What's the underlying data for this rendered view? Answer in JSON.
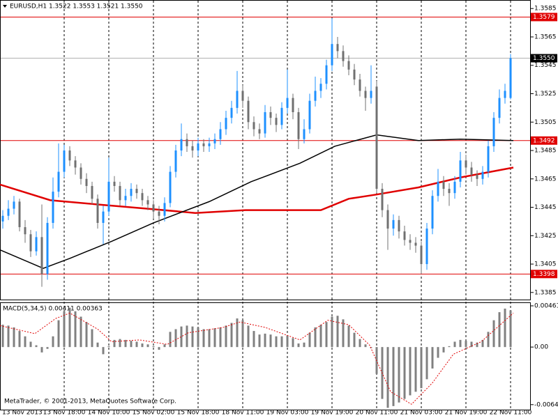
{
  "chart_data": [
    {
      "type": "candlestick",
      "title": "EURUSD,H1  1.3522 1.3553 1.3521 1.3550",
      "footer": "MetaTrader, © 2001-2013, MetaQuotes Software Corp.",
      "up_color": "#1e90ff",
      "down_color": "#707070",
      "xlim": [
        0,
        190
      ],
      "xticks": [
        {
          "value": 0,
          "label": "13 Nov 2013"
        },
        {
          "value": 23,
          "label": "13 Nov 18:00"
        },
        {
          "value": 39,
          "label": "14 Nov 10:00"
        },
        {
          "value": 55,
          "label": "15 Nov 02:00"
        },
        {
          "value": 71,
          "label": "15 Nov 18:00"
        },
        {
          "value": 87,
          "label": "18 Nov 11:00"
        },
        {
          "value": 103,
          "label": "19 Nov 03:00"
        },
        {
          "value": 119,
          "label": "19 Nov 19:00"
        },
        {
          "value": 135,
          "label": "20 Nov 11:00"
        },
        {
          "value": 151,
          "label": "21 Nov 03:00"
        },
        {
          "value": 167,
          "label": "21 Nov 19:00"
        },
        {
          "value": 183,
          "label": "22 Nov 11:00"
        }
      ],
      "ylim": [
        1.338,
        1.3591
      ],
      "yticks": [
        1.3585,
        1.3565,
        1.3545,
        1.3525,
        1.3505,
        1.3485,
        1.3465,
        1.3445,
        1.3425,
        1.3405,
        1.3385
      ],
      "grid": true,
      "x": [
        1,
        3,
        5,
        7,
        9,
        11,
        13,
        15,
        17,
        19,
        21,
        23,
        25,
        27,
        29,
        31,
        33,
        35,
        37,
        39,
        41,
        43,
        45,
        47,
        49,
        51,
        53,
        55,
        57,
        59,
        61,
        63,
        65,
        67,
        69,
        71,
        73,
        75,
        77,
        79,
        81,
        83,
        85,
        87,
        89,
        91,
        93,
        95,
        97,
        99,
        101,
        103,
        105,
        107,
        109,
        111,
        113,
        115,
        117,
        119,
        121,
        123,
        125,
        127,
        129,
        131,
        133,
        135,
        137,
        139,
        141,
        143,
        145,
        147,
        149,
        151,
        153,
        155,
        157,
        159,
        161,
        163,
        165,
        167,
        169,
        171,
        173,
        175,
        177,
        179,
        181,
        183
      ],
      "open": [
        1.3435,
        1.3439,
        1.3444,
        1.3449,
        1.3431,
        1.3426,
        1.3414,
        1.3424,
        1.3398,
        1.3434,
        1.3456,
        1.347,
        1.3485,
        1.3478,
        1.3473,
        1.3465,
        1.346,
        1.3451,
        1.3434,
        1.3442,
        1.3463,
        1.346,
        1.345,
        1.3453,
        1.3458,
        1.3455,
        1.345,
        1.3447,
        1.3442,
        1.3439,
        1.3448,
        1.347,
        1.3485,
        1.3493,
        1.3488,
        1.3485,
        1.349,
        1.3488,
        1.349,
        1.3493,
        1.35,
        1.3508,
        1.3515,
        1.3527,
        1.352,
        1.3505,
        1.35,
        1.3497,
        1.3512,
        1.3508,
        1.3503,
        1.3515,
        1.3522,
        1.3512,
        1.3493,
        1.35,
        1.352,
        1.3527,
        1.3532,
        1.3545,
        1.356,
        1.3555,
        1.3548,
        1.3542,
        1.3535,
        1.3527,
        1.3522,
        1.353,
        1.3458,
        1.3443,
        1.343,
        1.3436,
        1.3428,
        1.3422,
        1.342,
        1.3418,
        1.3405,
        1.343,
        1.3453,
        1.3463,
        1.3458,
        1.3455,
        1.3463,
        1.3478,
        1.3473,
        1.3468,
        1.3465,
        1.347,
        1.3488,
        1.3508,
        1.3522,
        1.3522
      ],
      "high": [
        1.3443,
        1.345,
        1.3453,
        1.3451,
        1.3436,
        1.3429,
        1.3428,
        1.3447,
        1.3438,
        1.3466,
        1.349,
        1.3489,
        1.3488,
        1.3481,
        1.3476,
        1.3469,
        1.3463,
        1.3454,
        1.3446,
        1.348,
        1.3467,
        1.3463,
        1.3458,
        1.3462,
        1.3461,
        1.3458,
        1.3453,
        1.345,
        1.3446,
        1.3452,
        1.3474,
        1.3489,
        1.3504,
        1.3497,
        1.3492,
        1.3494,
        1.3493,
        1.3494,
        1.3497,
        1.3505,
        1.3513,
        1.352,
        1.3541,
        1.3531,
        1.3523,
        1.3509,
        1.3504,
        1.3517,
        1.3516,
        1.3511,
        1.3519,
        1.3542,
        1.3525,
        1.3515,
        1.3507,
        1.3525,
        1.3537,
        1.3536,
        1.3549,
        1.3578,
        1.3565,
        1.3559,
        1.3552,
        1.3546,
        1.3539,
        1.353,
        1.3545,
        1.3534,
        1.3462,
        1.3447,
        1.344,
        1.3439,
        1.3432,
        1.3426,
        1.3424,
        1.3421,
        1.3434,
        1.3457,
        1.3472,
        1.3467,
        1.3462,
        1.3467,
        1.3484,
        1.3482,
        1.3477,
        1.3471,
        1.3474,
        1.3492,
        1.3512,
        1.3528,
        1.3532,
        1.3553
      ],
      "low": [
        1.343,
        1.3436,
        1.344,
        1.3428,
        1.342,
        1.341,
        1.3411,
        1.3389,
        1.3394,
        1.343,
        1.3452,
        1.3466,
        1.3474,
        1.3468,
        1.3461,
        1.3455,
        1.3447,
        1.343,
        1.3419,
        1.3439,
        1.3456,
        1.3446,
        1.3446,
        1.3449,
        1.3451,
        1.3446,
        1.3443,
        1.3437,
        1.3433,
        1.3435,
        1.3445,
        1.3466,
        1.3481,
        1.3484,
        1.348,
        1.3481,
        1.3484,
        1.3484,
        1.3486,
        1.3489,
        1.3496,
        1.3504,
        1.3511,
        1.3515,
        1.35,
        1.3495,
        1.3493,
        1.3494,
        1.3503,
        1.3498,
        1.35,
        1.3511,
        1.3507,
        1.3486,
        1.349,
        1.3497,
        1.3516,
        1.3522,
        1.3528,
        1.3541,
        1.355,
        1.3544,
        1.3538,
        1.3531,
        1.3523,
        1.3513,
        1.3518,
        1.3455,
        1.3438,
        1.3415,
        1.3425,
        1.3423,
        1.3418,
        1.3415,
        1.3413,
        1.3398,
        1.3401,
        1.3426,
        1.3449,
        1.3453,
        1.3446,
        1.3451,
        1.3459,
        1.3468,
        1.3463,
        1.346,
        1.3461,
        1.3466,
        1.3484,
        1.3504,
        1.3518,
        1.3521
      ],
      "close": [
        1.3439,
        1.3444,
        1.3449,
        1.3431,
        1.3426,
        1.3414,
        1.3424,
        1.3398,
        1.3434,
        1.3456,
        1.347,
        1.3485,
        1.3478,
        1.3473,
        1.3465,
        1.346,
        1.3451,
        1.3434,
        1.3442,
        1.3463,
        1.346,
        1.345,
        1.3453,
        1.3458,
        1.3455,
        1.345,
        1.3447,
        1.3442,
        1.3439,
        1.3448,
        1.347,
        1.3485,
        1.3493,
        1.3488,
        1.3485,
        1.349,
        1.3488,
        1.349,
        1.3493,
        1.35,
        1.3508,
        1.3515,
        1.3527,
        1.352,
        1.3505,
        1.35,
        1.3497,
        1.3512,
        1.3508,
        1.3503,
        1.3515,
        1.3522,
        1.3512,
        1.3493,
        1.35,
        1.352,
        1.3527,
        1.3532,
        1.3545,
        1.356,
        1.3555,
        1.3548,
        1.3542,
        1.3535,
        1.3527,
        1.3522,
        1.3527,
        1.3458,
        1.3443,
        1.343,
        1.3436,
        1.3428,
        1.3422,
        1.342,
        1.3418,
        1.3405,
        1.343,
        1.3453,
        1.3463,
        1.3458,
        1.3455,
        1.3463,
        1.3478,
        1.3473,
        1.3468,
        1.3465,
        1.347,
        1.3488,
        1.3508,
        1.3522,
        1.3527,
        1.355
      ],
      "series": [
        {
          "color": "#e00000",
          "width": 2.5,
          "x": [
            0,
            18,
            35,
            53,
            70,
            88,
            115,
            125,
            135,
            150,
            165,
            184
          ],
          "y": [
            1.3461,
            1.345,
            1.3447,
            1.3444,
            1.3441,
            1.3443,
            1.3443,
            1.3451,
            1.3454,
            1.3459,
            1.3466,
            1.3473
          ]
        },
        {
          "color": "#000000",
          "width": 1.5,
          "x": [
            0,
            15.5,
            25,
            40,
            55,
            75,
            90,
            107.5,
            120,
            135,
            150,
            165,
            184
          ],
          "y": [
            1.3415,
            1.3402,
            1.3409,
            1.3421,
            1.3434,
            1.3449,
            1.3463,
            1.3476,
            1.3488,
            1.3496,
            1.3492,
            1.3493,
            1.3492
          ]
        }
      ],
      "hlines": [
        {
          "value": 1.3579,
          "color": "#e00000",
          "box_color": "#e00000"
        },
        {
          "value": 1.355,
          "label": "1.3550",
          "color": "#b0b0b0",
          "box_color": "#000000"
        },
        {
          "value": 1.3492,
          "color": "#e00000",
          "box_color": "#e00000"
        },
        {
          "value": 1.3398,
          "color": "#e00000",
          "box_color": "#e00000"
        }
      ]
    },
    {
      "type": "bar",
      "title": "MACD(5,34,5) 0.00411 0.00363",
      "color": "#808080",
      "ylim": [
        -0.007,
        0.005
      ],
      "yticks": [
        0.00461,
        {
          "value": 0,
          "label": "0.00"
        },
        -0.00644
      ],
      "x": [
        1,
        3,
        5,
        7,
        9,
        11,
        13,
        15,
        17,
        19,
        21,
        23,
        25,
        27,
        29,
        31,
        33,
        35,
        37,
        39,
        41,
        43,
        45,
        47,
        49,
        51,
        53,
        55,
        57,
        59,
        61,
        63,
        65,
        67,
        69,
        71,
        73,
        75,
        77,
        79,
        81,
        83,
        85,
        87,
        89,
        91,
        93,
        95,
        97,
        99,
        101,
        103,
        105,
        107,
        109,
        111,
        113,
        115,
        117,
        119,
        121,
        123,
        125,
        127,
        129,
        131,
        133,
        135,
        137,
        139,
        141,
        143,
        145,
        147,
        149,
        151,
        153,
        155,
        157,
        159,
        161,
        163,
        165,
        167,
        169,
        171,
        173,
        175,
        177,
        179,
        181,
        183
      ],
      "values": [
        0.0025,
        0.0024,
        0.0022,
        0.0018,
        0.0012,
        0.0006,
        0.0002,
        -0.0006,
        -0.0002,
        0.0012,
        0.003,
        0.004,
        0.0044,
        0.004,
        0.0034,
        0.0028,
        0.002,
        0.0005,
        -0.0008,
        0.0001,
        0.0008,
        0.0009,
        0.0008,
        0.0007,
        0.0006,
        0.0004,
        0.0003,
        0.0001,
        -0.0003,
        0.0003,
        0.0017,
        0.002,
        0.0023,
        0.0024,
        0.0023,
        0.0022,
        0.002,
        0.002,
        0.0021,
        0.0022,
        0.0024,
        0.0027,
        0.0032,
        0.003,
        0.0024,
        0.0018,
        0.0014,
        0.0015,
        0.0014,
        0.0012,
        0.0012,
        0.0013,
        0.001,
        0.0004,
        0.0005,
        0.0016,
        0.0022,
        0.0025,
        0.0028,
        0.0034,
        0.0035,
        0.0031,
        0.0024,
        0.0016,
        0.0009,
        0.0003,
        -0.0001,
        -0.003,
        -0.0058,
        -0.0068,
        -0.0066,
        -0.0062,
        -0.0058,
        -0.0054,
        -0.005,
        -0.0046,
        -0.0036,
        -0.0024,
        -0.0012,
        -0.0006,
        0.0001,
        0.0006,
        0.0008,
        0.0007,
        0.0006,
        0.0005,
        0.0008,
        0.0017,
        0.003,
        0.0039,
        0.0043,
        0.0041
      ],
      "series": [
        {
          "color": "#e00000",
          "style": "dotted",
          "x": [
            0,
            12.5,
            20,
            25,
            35,
            40,
            50,
            60,
            67.5,
            80,
            86,
            95,
            107.5,
            117.5,
            125,
            132.5,
            140,
            147.5,
            155,
            162.5,
            172.5,
            184
          ],
          "y": [
            0.0024,
            0.0015,
            0.0032,
            0.0038,
            0.002,
            0.0006,
            0.0008,
            0.0003,
            0.0016,
            0.0022,
            0.0028,
            0.0022,
            0.0008,
            0.003,
            0.0025,
            0.0002,
            -0.005,
            -0.0064,
            -0.004,
            -0.0008,
            0.0006,
            0.0038
          ]
        }
      ]
    }
  ]
}
